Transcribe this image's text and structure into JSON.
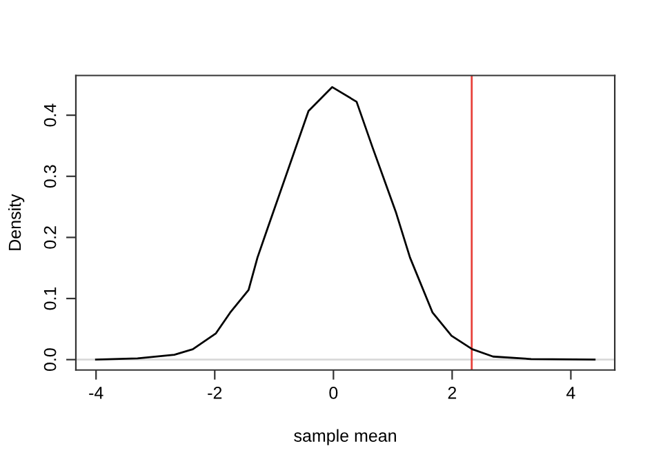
{
  "chart_data": {
    "type": "line",
    "xlabel": "sample mean",
    "ylabel": "Density",
    "x": [
      -4,
      -3.3,
      -2.68,
      -2.37,
      -1.98,
      -1.74,
      -1.43,
      -1.28,
      -1.12,
      -0.66,
      -0.42,
      -0.02,
      0.39,
      0.66,
      1.05,
      1.29,
      1.67,
      1.99,
      2.34,
      2.69,
      3.33,
      4.4
    ],
    "series": [
      {
        "color": "#000000",
        "values": [
          0,
          0.002,
          0.008,
          0.017,
          0.043,
          0.077,
          0.114,
          0.167,
          0.212,
          0.34,
          0.407,
          0.446,
          0.422,
          0.347,
          0.242,
          0.167,
          0.077,
          0.039,
          0.017,
          0.005,
          0.001,
          0
        ]
      }
    ],
    "xlim": [
      -4.34,
      4.74
    ],
    "ylim": [
      -0.017,
      0.465
    ],
    "xticks": [
      -4,
      -2,
      0,
      2,
      4
    ],
    "yticks": [
      {
        "value": 0,
        "label": "0.0"
      },
      0.1,
      0.2,
      0.3,
      0.4
    ],
    "ref_lines": [
      {
        "axis": "y",
        "value": 0,
        "color": "#d9d9d9"
      },
      {
        "axis": "x",
        "value": 2.33,
        "color": "#e8403a"
      }
    ],
    "grid": false,
    "legend": false,
    "marker": "none",
    "line_style": "solid"
  }
}
